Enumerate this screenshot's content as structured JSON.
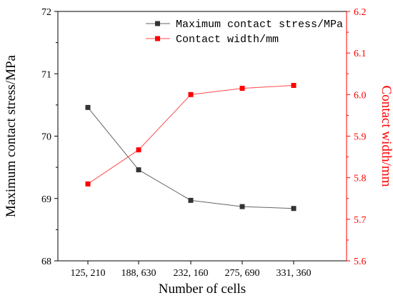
{
  "chart_data": {
    "type": "line",
    "title": "",
    "xlabel": "Number of cells",
    "categories": [
      "125, 210",
      "188, 630",
      "232, 160",
      "275, 690",
      "331, 360"
    ],
    "y_left": {
      "label": "Maximum contact stress/MPa",
      "ylim": [
        68,
        72
      ],
      "ticks": [
        "68",
        "69",
        "70",
        "71",
        "72"
      ]
    },
    "y_right": {
      "label": "Contact width/mm",
      "ylim": [
        5.6,
        6.2
      ],
      "ticks": [
        "5.6",
        "5.7",
        "5.8",
        "5.9",
        "6.0",
        "6.1",
        "6.2"
      ],
      "color": "#ff0000"
    },
    "series": [
      {
        "name": "Maximum contact stress/MPa",
        "axis": "left",
        "color": "#333333",
        "line_color": "#666666",
        "marker": "square",
        "values": [
          70.46,
          69.46,
          68.97,
          68.87,
          68.84
        ]
      },
      {
        "name": "Contact width/mm",
        "axis": "right",
        "color": "#ff0000",
        "line_color": "#ff4a4a",
        "marker": "square",
        "values": [
          5.785,
          5.867,
          6.0,
          6.015,
          6.022
        ]
      }
    ],
    "grid": false,
    "legend_position": "top-right"
  }
}
